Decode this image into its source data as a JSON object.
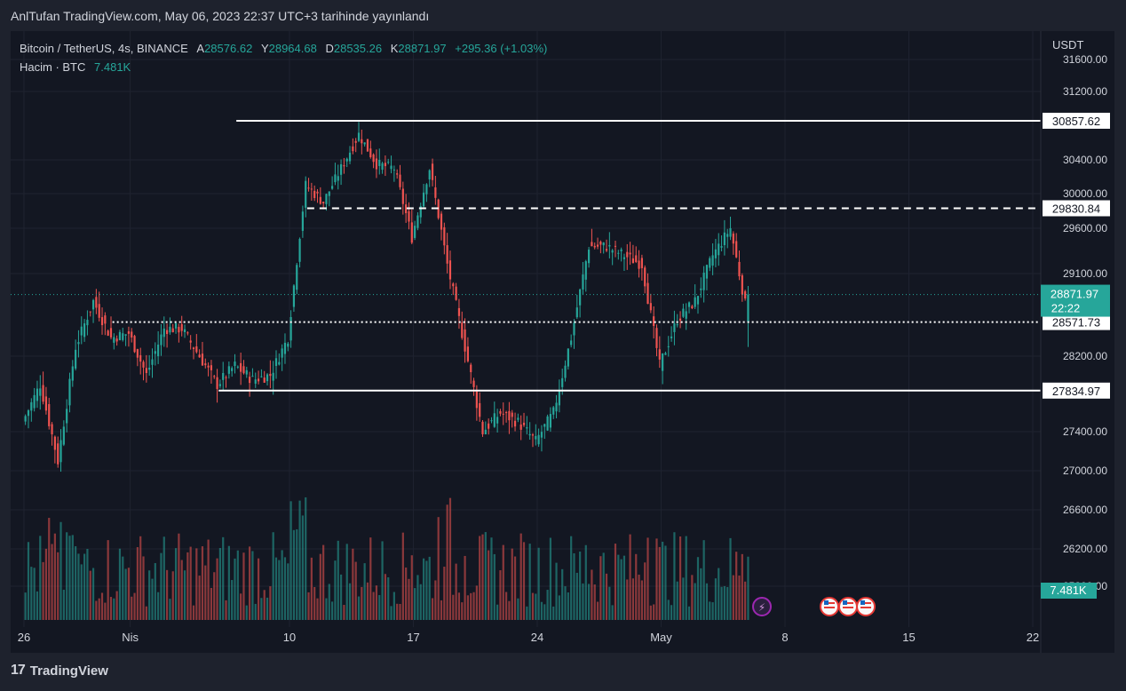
{
  "header": {
    "title": "AnlTufan TradingView.com, May 06, 2023 22:37 UTC+3 tarihinde yayınlandı"
  },
  "legend": {
    "symbol": "Bitcoin / TetherUS, 4s, BINANCE",
    "open_label": "A",
    "open": "28576.62",
    "high_label": "Y",
    "high": "28964.68",
    "low_label": "D",
    "low": "28535.26",
    "close_label": "K",
    "close": "28871.97",
    "change": "+295.36 (+1.03%)",
    "volume_label": "Hacim · BTC",
    "volume": "7.481K"
  },
  "currency": "USDT",
  "footer": {
    "brand": "TradingView",
    "logo_text": "17"
  },
  "colors": {
    "up": "#26a69a",
    "down": "#ef5350",
    "bg": "#131722",
    "grid": "#1f2330",
    "axis_text": "#d1d4dc",
    "level": "#ffffff"
  },
  "chart_data": {
    "type": "candlestick",
    "timeframe": "4s",
    "y_ticks": [
      "31600.00",
      "31200.00",
      "30400.00",
      "30000.00",
      "29600.00",
      "29100.00",
      "28200.00",
      "27400.00",
      "27000.00",
      "26600.00",
      "26200.00",
      "25800.00"
    ],
    "x_ticks": [
      "26",
      "Nis",
      "10",
      "17",
      "24",
      "May",
      "8",
      "15",
      "22"
    ],
    "ylim": [
      25800,
      31600
    ],
    "levels": [
      {
        "value": "30857.62",
        "style": "solid"
      },
      {
        "value": "29830.84",
        "style": "dashed"
      },
      {
        "value": "28571.73",
        "style": "dotted"
      },
      {
        "value": "27834.97",
        "style": "solid"
      }
    ],
    "last_price": {
      "value": "28871.97",
      "countdown": "22:22"
    },
    "volume_label": "7.481K",
    "price_path": [
      [
        "2023-03-26",
        27500
      ],
      [
        "2023-03-27",
        27900
      ],
      [
        "2023-03-28",
        27100
      ],
      [
        "2023-03-29",
        28300
      ],
      [
        "2023-03-30",
        28800
      ],
      [
        "2023-03-31",
        28400
      ],
      [
        "2023-04-01",
        28450
      ],
      [
        "2023-04-02",
        28000
      ],
      [
        "2023-04-03",
        28500
      ],
      [
        "2023-04-04",
        28500
      ],
      [
        "2023-04-05",
        28200
      ],
      [
        "2023-04-06",
        27900
      ],
      [
        "2023-04-07",
        28100
      ],
      [
        "2023-04-08",
        27950
      ],
      [
        "2023-04-09",
        28000
      ],
      [
        "2023-04-10",
        28400
      ],
      [
        "2023-04-11",
        30100
      ],
      [
        "2023-04-12",
        29900
      ],
      [
        "2023-04-13",
        30300
      ],
      [
        "2023-04-14",
        30700
      ],
      [
        "2023-04-15",
        30350
      ],
      [
        "2023-04-16",
        30300
      ],
      [
        "2023-04-17",
        29500
      ],
      [
        "2023-04-18",
        30300
      ],
      [
        "2023-04-19",
        29200
      ],
      [
        "2023-04-20",
        28300
      ],
      [
        "2023-04-21",
        27400
      ],
      [
        "2023-04-22",
        27600
      ],
      [
        "2023-04-23",
        27500
      ],
      [
        "2023-04-24",
        27300
      ],
      [
        "2023-04-25",
        27600
      ],
      [
        "2023-04-26",
        28400
      ],
      [
        "2023-04-27",
        29400
      ],
      [
        "2023-04-28",
        29400
      ],
      [
        "2023-04-29",
        29300
      ],
      [
        "2023-04-30",
        29200
      ],
      [
        "2023-05-01",
        28100
      ],
      [
        "2023-05-02",
        28600
      ],
      [
        "2023-05-03",
        28800
      ],
      [
        "2023-05-04",
        29300
      ],
      [
        "2023-05-05",
        29600
      ],
      [
        "2023-05-06",
        28600
      ]
    ]
  }
}
